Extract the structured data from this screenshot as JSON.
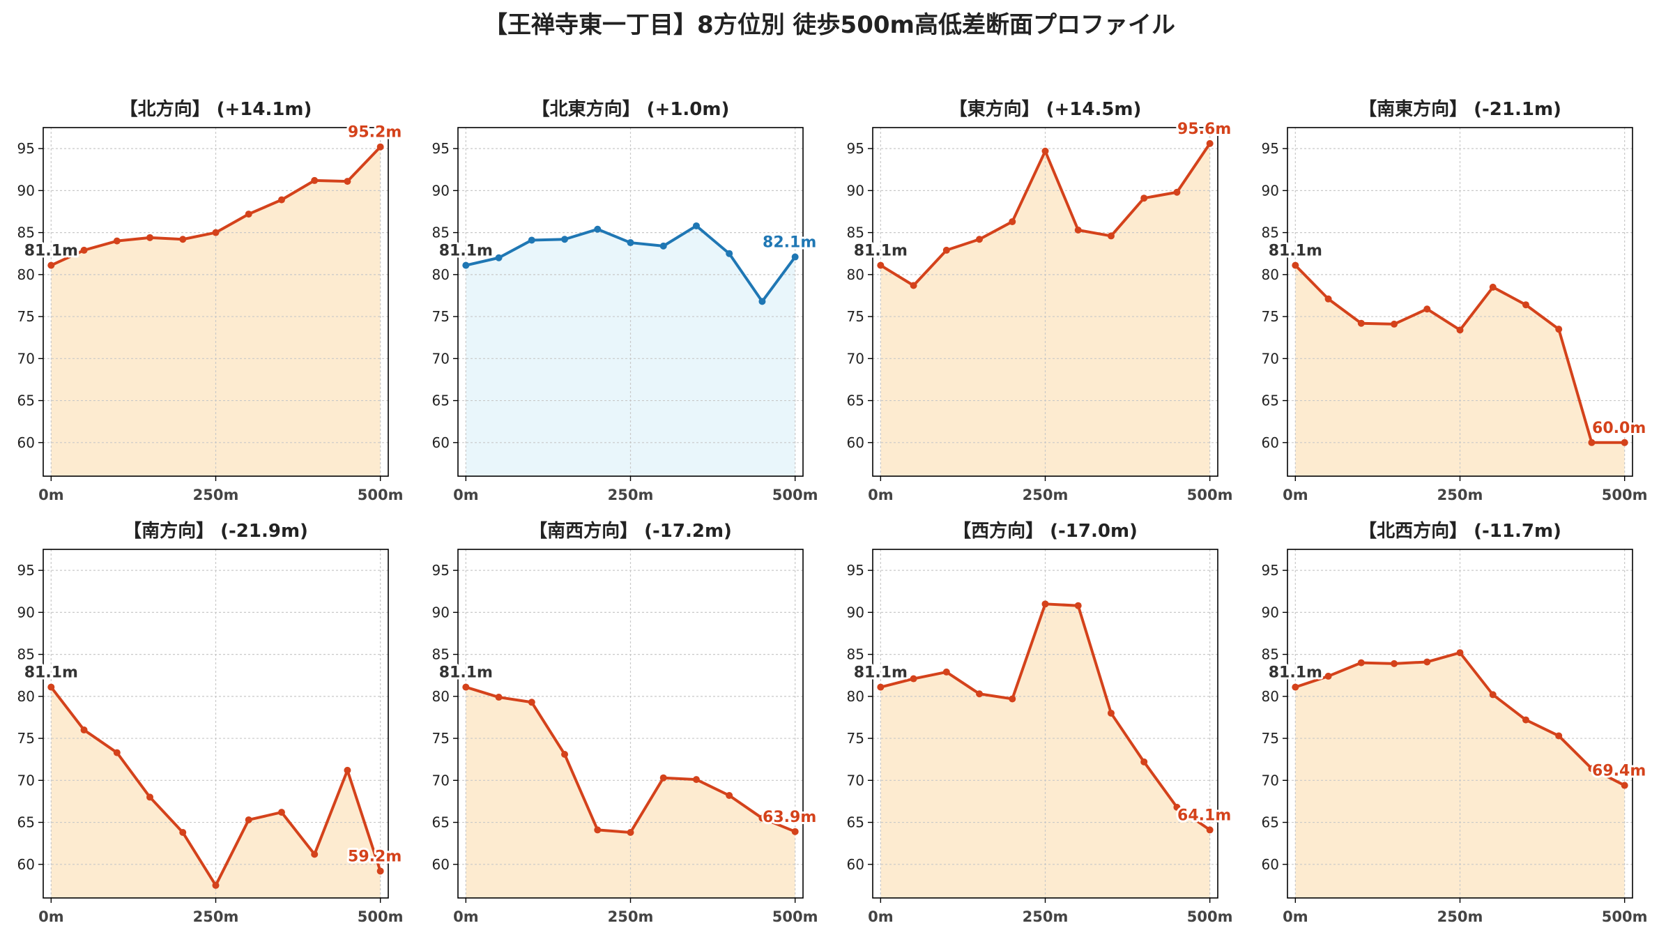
{
  "title": "【王禅寺東一丁目】8方位別 徒歩500m高低差断面プロファイル",
  "colors": {
    "down_line": "#d4421b",
    "down_fill": "#fdebd0",
    "up_line": "#1f77b4",
    "up_fill": "#e9f6fb",
    "start_label": "#333333",
    "grid": "#c8c8c8",
    "axis": "#000000",
    "tick_text": "#444444"
  },
  "chart_data": [
    {
      "type": "area",
      "title": "【北方向】 (+14.1m)",
      "x": [
        0,
        50,
        100,
        150,
        200,
        250,
        300,
        350,
        400,
        450,
        500
      ],
      "y": [
        81.1,
        82.9,
        84.0,
        84.4,
        84.2,
        85.0,
        87.2,
        88.9,
        91.2,
        91.1,
        95.2
      ],
      "start_label": "81.1m",
      "end_label": "95.2m",
      "xticks": [
        "0m",
        "250m",
        "500m"
      ],
      "ylim": [
        56,
        97.5
      ],
      "yticks": [
        60,
        65,
        70,
        75,
        80,
        85,
        90,
        95
      ],
      "grid": true,
      "style": "down"
    },
    {
      "type": "area",
      "title": "【北東方向】 (+1.0m)",
      "x": [
        0,
        50,
        100,
        150,
        200,
        250,
        300,
        350,
        400,
        450,
        500
      ],
      "y": [
        81.1,
        82.0,
        84.1,
        84.2,
        85.4,
        83.8,
        83.4,
        85.8,
        82.5,
        76.8,
        82.1
      ],
      "start_label": "81.1m",
      "end_label": "82.1m",
      "xticks": [
        "0m",
        "250m",
        "500m"
      ],
      "ylim": [
        56,
        97.5
      ],
      "yticks": [
        60,
        65,
        70,
        75,
        80,
        85,
        90,
        95
      ],
      "grid": true,
      "style": "up"
    },
    {
      "type": "area",
      "title": "【東方向】 (+14.5m)",
      "x": [
        0,
        50,
        100,
        150,
        200,
        250,
        300,
        350,
        400,
        450,
        500
      ],
      "y": [
        81.1,
        78.7,
        82.9,
        84.2,
        86.3,
        94.7,
        85.3,
        84.6,
        89.1,
        89.8,
        95.6
      ],
      "start_label": "81.1m",
      "end_label": "95.6m",
      "xticks": [
        "0m",
        "250m",
        "500m"
      ],
      "ylim": [
        56,
        97.5
      ],
      "yticks": [
        60,
        65,
        70,
        75,
        80,
        85,
        90,
        95
      ],
      "grid": true,
      "style": "down"
    },
    {
      "type": "area",
      "title": "【南東方向】 (-21.1m)",
      "x": [
        0,
        50,
        100,
        150,
        200,
        250,
        300,
        350,
        400,
        450,
        500
      ],
      "y": [
        81.1,
        77.1,
        74.2,
        74.1,
        75.9,
        73.4,
        78.5,
        76.4,
        73.5,
        60.0,
        60.0
      ],
      "start_label": "81.1m",
      "end_label": "60.0m",
      "xticks": [
        "0m",
        "250m",
        "500m"
      ],
      "ylim": [
        56,
        97.5
      ],
      "yticks": [
        60,
        65,
        70,
        75,
        80,
        85,
        90,
        95
      ],
      "grid": true,
      "style": "down"
    },
    {
      "type": "area",
      "title": "【南方向】 (-21.9m)",
      "x": [
        0,
        50,
        100,
        150,
        200,
        250,
        300,
        350,
        400,
        450,
        500
      ],
      "y": [
        81.1,
        76.0,
        73.3,
        68.0,
        63.8,
        57.5,
        65.3,
        66.2,
        61.2,
        71.2,
        59.2
      ],
      "start_label": "81.1m",
      "end_label": "59.2m",
      "xticks": [
        "0m",
        "250m",
        "500m"
      ],
      "ylim": [
        56,
        97.5
      ],
      "yticks": [
        60,
        65,
        70,
        75,
        80,
        85,
        90,
        95
      ],
      "grid": true,
      "style": "down"
    },
    {
      "type": "area",
      "title": "【南西方向】 (-17.2m)",
      "x": [
        0,
        50,
        100,
        150,
        200,
        250,
        300,
        350,
        400,
        450,
        500
      ],
      "y": [
        81.1,
        79.9,
        79.3,
        73.1,
        64.1,
        63.8,
        70.3,
        70.1,
        68.2,
        65.5,
        63.9
      ],
      "start_label": "81.1m",
      "end_label": "63.9m",
      "xticks": [
        "0m",
        "250m",
        "500m"
      ],
      "ylim": [
        56,
        97.5
      ],
      "yticks": [
        60,
        65,
        70,
        75,
        80,
        85,
        90,
        95
      ],
      "grid": true,
      "style": "down"
    },
    {
      "type": "area",
      "title": "【西方向】 (-17.0m)",
      "x": [
        0,
        50,
        100,
        150,
        200,
        250,
        300,
        350,
        400,
        450,
        500
      ],
      "y": [
        81.1,
        82.1,
        82.9,
        80.3,
        79.7,
        91.0,
        90.8,
        78.0,
        72.2,
        66.8,
        64.1
      ],
      "start_label": "81.1m",
      "end_label": "64.1m",
      "xticks": [
        "0m",
        "250m",
        "500m"
      ],
      "ylim": [
        56,
        97.5
      ],
      "yticks": [
        60,
        65,
        70,
        75,
        80,
        85,
        90,
        95
      ],
      "grid": true,
      "style": "down"
    },
    {
      "type": "area",
      "title": "【北西方向】 (-11.7m)",
      "x": [
        0,
        50,
        100,
        150,
        200,
        250,
        300,
        350,
        400,
        450,
        500
      ],
      "y": [
        81.1,
        82.4,
        84.0,
        83.9,
        84.1,
        85.2,
        80.2,
        77.2,
        75.3,
        71.4,
        69.4
      ],
      "start_label": "81.1m",
      "end_label": "69.4m",
      "xticks": [
        "0m",
        "250m",
        "500m"
      ],
      "ylim": [
        56,
        97.5
      ],
      "yticks": [
        60,
        65,
        70,
        75,
        80,
        85,
        90,
        95
      ],
      "grid": true,
      "style": "down"
    }
  ]
}
